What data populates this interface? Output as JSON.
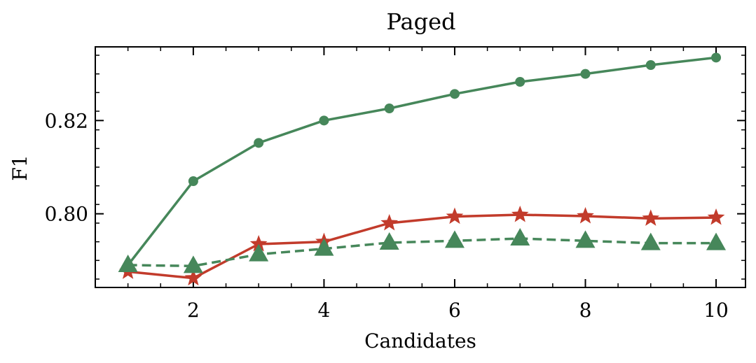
{
  "chart_data": {
    "type": "line",
    "title": "Paged",
    "xlabel": "Candidates",
    "ylabel": "F1",
    "xlim": [
      0.5,
      10.45
    ],
    "ylim": [
      0.7842,
      0.8358
    ],
    "x_ticks": [
      2,
      4,
      6,
      8,
      10
    ],
    "x_tick_labels": [
      "2",
      "4",
      "6",
      "8",
      "10"
    ],
    "y_ticks": [
      0.8,
      0.82
    ],
    "y_tick_labels": [
      "0.80",
      "0.82"
    ],
    "grid": false,
    "legend": "none",
    "x": [
      1,
      2,
      3,
      4,
      5,
      6,
      7,
      8,
      9,
      10
    ],
    "series": [
      {
        "values": [
          0.789,
          0.807,
          0.8152,
          0.82,
          0.8226,
          0.8257,
          0.8283,
          0.83,
          0.8319,
          0.8335
        ],
        "color": "#46875A",
        "line_style": "solid",
        "marker": "circle"
      },
      {
        "values": [
          0.7876,
          0.7862,
          0.7935,
          0.794,
          0.798,
          0.7994,
          0.7998,
          0.7995,
          0.799,
          0.7992
        ],
        "color": "#C23B2B",
        "line_style": "solid",
        "marker": "star"
      },
      {
        "values": [
          0.789,
          0.7888,
          0.7913,
          0.7925,
          0.7938,
          0.7942,
          0.7947,
          0.7942,
          0.7937,
          0.7937
        ],
        "color": "#46875A",
        "line_style": "dashed",
        "marker": "triangle"
      }
    ]
  }
}
